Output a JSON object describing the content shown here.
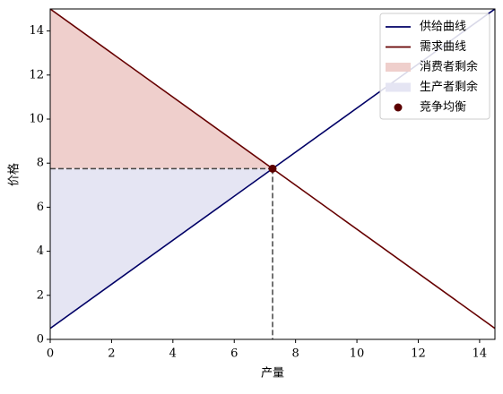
{
  "chart_data": {
    "type": "line",
    "xlabel": "产量",
    "ylabel": "价格",
    "xlim": [
      0,
      14.5
    ],
    "ylim": [
      0,
      15
    ],
    "xticks": [
      0,
      2,
      4,
      6,
      8,
      10,
      12,
      14
    ],
    "yticks": [
      0,
      2,
      4,
      6,
      8,
      10,
      12,
      14
    ],
    "legend": "upper right",
    "series": [
      {
        "name": "供给曲线",
        "type": "line",
        "color": "#000066",
        "x": [
          0,
          14.5
        ],
        "values": [
          0.5,
          15
        ]
      },
      {
        "name": "需求曲线",
        "type": "line",
        "color": "#660000",
        "x": [
          0,
          14.5
        ],
        "values": [
          15,
          0.5
        ]
      },
      {
        "name": "消费者剩余",
        "type": "area",
        "color": "#efcfcc",
        "x": [
          0,
          7.25
        ],
        "upper": [
          15,
          7.75
        ],
        "lower": [
          7.75,
          7.75
        ]
      },
      {
        "name": "生产者剩余",
        "type": "area",
        "color": "#e5e5f3",
        "x": [
          0,
          7.25
        ],
        "upper": [
          7.75,
          7.75
        ],
        "lower": [
          0.5,
          7.75
        ]
      },
      {
        "name": "竞争均衡",
        "type": "scatter",
        "color": "#5c0000",
        "x": [
          7.25
        ],
        "values": [
          7.75
        ],
        "guides": true
      }
    ]
  }
}
